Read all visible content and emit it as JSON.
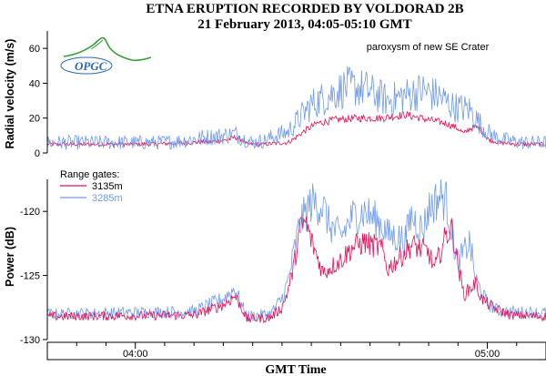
{
  "title_line1": "ETNA ERUPTION RECORDED BY VOLDORAD 2B",
  "title_line2": "21 February 2013, 04:05-05:10 GMT",
  "xlabel": "GMT Time",
  "logo_text": "OPGC",
  "colors": {
    "series_3135": "#e0105a",
    "series_3285": "#6f9be8",
    "axis": "#000000"
  },
  "chart_data": [
    {
      "type": "line",
      "panel": "velocity",
      "ylabel": "Radial velocity (m/s)",
      "ylim": [
        0,
        70
      ],
      "yticks": [
        0,
        20,
        40,
        60
      ],
      "xlim_minutes": [
        225,
        310
      ],
      "xticks": [
        {
          "minute": 240,
          "label": "04:00"
        },
        {
          "minute": 300,
          "label": "05:00"
        }
      ],
      "annotation": "paroxysm of new SE Crater",
      "series": [
        {
          "name": "3135m",
          "profile": [
            [
              225,
              5
            ],
            [
              242,
              5
            ],
            [
              250,
              6
            ],
            [
              255,
              7
            ],
            [
              257,
              9
            ],
            [
              258,
              8
            ],
            [
              259,
              5
            ],
            [
              262,
              5
            ],
            [
              266,
              6
            ],
            [
              267,
              8
            ],
            [
              269,
              13
            ],
            [
              271,
              17
            ],
            [
              274,
              19
            ],
            [
              278,
              20
            ],
            [
              282,
              20
            ],
            [
              286,
              22
            ],
            [
              290,
              19
            ],
            [
              293,
              17
            ],
            [
              295,
              14
            ],
            [
              296,
              11
            ],
            [
              297,
              14
            ],
            [
              298,
              15
            ],
            [
              299,
              13
            ],
            [
              300,
              8
            ],
            [
              302,
              6
            ],
            [
              305,
              5
            ],
            [
              310,
              5
            ]
          ],
          "noise": 1.2
        },
        {
          "name": "3285m",
          "profile": [
            [
              225,
              6
            ],
            [
              244,
              6
            ],
            [
              248,
              7
            ],
            [
              252,
              9
            ],
            [
              255,
              10
            ],
            [
              257,
              11
            ],
            [
              258,
              9
            ],
            [
              260,
              6
            ],
            [
              262,
              7
            ],
            [
              264,
              10
            ],
            [
              266,
              12
            ],
            [
              268,
              20
            ],
            [
              270,
              28
            ],
            [
              273,
              33
            ],
            [
              276,
              38
            ],
            [
              279,
              37
            ],
            [
              283,
              30
            ],
            [
              286,
              33
            ],
            [
              289,
              36
            ],
            [
              292,
              32
            ],
            [
              294,
              27
            ],
            [
              295,
              26
            ],
            [
              297,
              25
            ],
            [
              298,
              20
            ],
            [
              300,
              12
            ],
            [
              302,
              8
            ],
            [
              306,
              6
            ],
            [
              310,
              6
            ]
          ],
          "noise": 4.2
        }
      ]
    },
    {
      "type": "line",
      "panel": "power",
      "ylabel": "Power (dB)",
      "ylim": [
        -130,
        -117.5
      ],
      "yticks": [
        -130,
        -125,
        -120
      ],
      "xlim_minutes": [
        225,
        310
      ],
      "xticks": [
        {
          "minute": 240,
          "label": "04:00"
        },
        {
          "minute": 300,
          "label": "05:00"
        }
      ],
      "legend_title": "Range gates:",
      "legend_entries": [
        "3135m",
        "3285m"
      ],
      "series": [
        {
          "name": "3135m",
          "profile": [
            [
              225,
              -128.2
            ],
            [
              250,
              -128.1
            ],
            [
              255,
              -127.3
            ],
            [
              257,
              -126.6
            ],
            [
              258,
              -127.4
            ],
            [
              259,
              -128.4
            ],
            [
              263,
              -128.3
            ],
            [
              265,
              -127.5
            ],
            [
              266,
              -126.2
            ],
            [
              267,
              -124.3
            ],
            [
              268,
              -121.5
            ],
            [
              269,
              -120.8
            ],
            [
              270,
              -122.3
            ],
            [
              271,
              -123.5
            ],
            [
              272,
              -124.8
            ],
            [
              275,
              -123.8
            ],
            [
              277,
              -122.8
            ],
            [
              279,
              -122.4
            ],
            [
              282,
              -122.9
            ],
            [
              283,
              -124.5
            ],
            [
              285,
              -123.6
            ],
            [
              286,
              -123.2
            ],
            [
              287,
              -122.6
            ],
            [
              290,
              -123.2
            ],
            [
              291,
              -124.5
            ],
            [
              293,
              -121.8
            ],
            [
              294,
              -121.4
            ],
            [
              295,
              -124.2
            ],
            [
              296,
              -126.5
            ],
            [
              298,
              -125.6
            ],
            [
              299,
              -126.8
            ],
            [
              301,
              -127.5
            ],
            [
              304,
              -128.1
            ],
            [
              310,
              -128.2
            ]
          ],
          "noise": 0.35
        },
        {
          "name": "3285m",
          "profile": [
            [
              225,
              -128.0
            ],
            [
              250,
              -127.8
            ],
            [
              255,
              -126.8
            ],
            [
              257,
              -126.0
            ],
            [
              258,
              -127.2
            ],
            [
              259,
              -128.2
            ],
            [
              263,
              -128.0
            ],
            [
              265,
              -126.8
            ],
            [
              266,
              -125.5
            ],
            [
              268,
              -121.0
            ],
            [
              270,
              -119.3
            ],
            [
              272,
              -119.6
            ],
            [
              273,
              -121.0
            ],
            [
              275,
              -122.0
            ],
            [
              277,
              -120.4
            ],
            [
              279,
              -120.0
            ],
            [
              282,
              -121.0
            ],
            [
              283,
              -121.8
            ],
            [
              286,
              -122.2
            ],
            [
              287,
              -120.3
            ],
            [
              289,
              -121.5
            ],
            [
              290,
              -119.8
            ],
            [
              292,
              -118.8
            ],
            [
              293,
              -119.2
            ],
            [
              294,
              -121.8
            ],
            [
              295,
              -124.0
            ],
            [
              297,
              -122.4
            ],
            [
              298,
              -125.3
            ],
            [
              300,
              -127.2
            ],
            [
              302,
              -127.8
            ],
            [
              310,
              -127.9
            ]
          ],
          "noise": 0.45
        }
      ]
    }
  ]
}
